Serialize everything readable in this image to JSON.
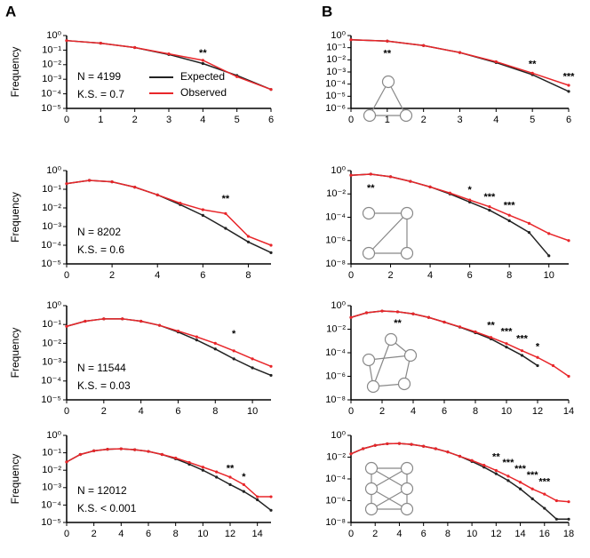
{
  "panel_labels": [
    "A",
    "B"
  ],
  "chart_data": [
    {
      "type": "line",
      "ylabel": "Frequency",
      "log_y": true,
      "x": [
        0,
        1,
        2,
        3,
        4,
        5,
        6
      ],
      "xlim": [
        0,
        6
      ],
      "xticks": [
        0,
        1,
        2,
        3,
        4,
        5,
        6
      ],
      "ylim": [
        1e-05,
        1
      ],
      "yticks": [
        {
          "value": 1,
          "label": "10⁰"
        },
        {
          "value": 0.1,
          "label": "10⁻¹"
        },
        {
          "value": 0.01,
          "label": "10⁻²"
        },
        {
          "value": 0.001,
          "label": "10⁻³"
        },
        {
          "value": 0.0001,
          "label": "10⁻⁴"
        },
        {
          "value": 1e-05,
          "label": "10⁻⁵"
        }
      ],
      "series": [
        {
          "name": "Expected",
          "color": "#222222",
          "values": [
            0.45,
            0.3,
            0.15,
            0.05,
            0.012,
            0.0018,
            0.0002
          ]
        },
        {
          "name": "Observed",
          "color": "#e8262a",
          "values": [
            0.45,
            0.3,
            0.15,
            0.055,
            0.02,
            0.0015,
            0.0002
          ]
        }
      ],
      "legend": "center",
      "texts": [
        "N = 4199",
        "K.S. = 0.7"
      ],
      "annotations": [
        {
          "text": "**",
          "x": 4,
          "y": 0.06
        }
      ]
    },
    {
      "type": "line",
      "ylabel": "Frequency",
      "log_y": true,
      "x": [
        0,
        1,
        2,
        3,
        4,
        5,
        6,
        7,
        8,
        9
      ],
      "xlim": [
        0,
        9
      ],
      "xticks": [
        0,
        2,
        4,
        6,
        8
      ],
      "ylim": [
        1e-05,
        1
      ],
      "yticks": [
        {
          "value": 1,
          "label": "10⁰"
        },
        {
          "value": 0.1,
          "label": "10⁻¹"
        },
        {
          "value": 0.01,
          "label": "10⁻²"
        },
        {
          "value": 0.001,
          "label": "10⁻³"
        },
        {
          "value": 0.0001,
          "label": "10⁻⁴"
        },
        {
          "value": 1e-05,
          "label": "10⁻⁵"
        }
      ],
      "series": [
        {
          "color": "#222222",
          "values": [
            0.2,
            0.3,
            0.25,
            0.13,
            0.05,
            0.015,
            0.004,
            0.0008,
            0.00015,
            4e-05
          ]
        },
        {
          "color": "#e8262a",
          "values": [
            0.2,
            0.3,
            0.25,
            0.13,
            0.05,
            0.018,
            0.008,
            0.005,
            0.0003,
            0.0001
          ]
        }
      ],
      "texts": [
        "N = 8202",
        "K.S. = 0.6"
      ],
      "annotations": [
        {
          "text": "**",
          "x": 7,
          "y": 0.03
        }
      ]
    },
    {
      "type": "line",
      "ylabel": "Frequency",
      "log_y": true,
      "x": [
        0,
        1,
        2,
        3,
        4,
        5,
        6,
        7,
        8,
        9,
        10,
        11
      ],
      "xlim": [
        0,
        11
      ],
      "xticks": [
        0,
        2,
        4,
        6,
        8,
        10
      ],
      "ylim": [
        1e-05,
        1
      ],
      "yticks": [
        {
          "value": 1,
          "label": "10⁰"
        },
        {
          "value": 0.1,
          "label": "10⁻¹"
        },
        {
          "value": 0.01,
          "label": "10⁻²"
        },
        {
          "value": 0.001,
          "label": "10⁻³"
        },
        {
          "value": 0.0001,
          "label": "10⁻⁴"
        },
        {
          "value": 1e-05,
          "label": "10⁻⁵"
        }
      ],
      "series": [
        {
          "color": "#222222",
          "values": [
            0.08,
            0.15,
            0.2,
            0.2,
            0.15,
            0.09,
            0.04,
            0.015,
            0.005,
            0.0015,
            0.0005,
            0.0002
          ]
        },
        {
          "color": "#e8262a",
          "values": [
            0.08,
            0.15,
            0.2,
            0.2,
            0.15,
            0.09,
            0.045,
            0.022,
            0.01,
            0.004,
            0.0015,
            0.0006
          ]
        }
      ],
      "texts": [
        "N = 11544",
        "K.S. = 0.03"
      ],
      "annotations": [
        {
          "text": "*",
          "x": 9,
          "y": 0.03
        }
      ]
    },
    {
      "type": "line",
      "ylabel": "Frequency",
      "log_y": true,
      "x": [
        0,
        1,
        2,
        3,
        4,
        5,
        6,
        7,
        8,
        9,
        10,
        11,
        12,
        13,
        14,
        15
      ],
      "xlim": [
        0,
        15
      ],
      "xticks": [
        0,
        2,
        4,
        6,
        8,
        10,
        12,
        14
      ],
      "ylim": [
        1e-05,
        1
      ],
      "yticks": [
        {
          "value": 1,
          "label": "10⁰"
        },
        {
          "value": 0.1,
          "label": "10⁻¹"
        },
        {
          "value": 0.01,
          "label": "10⁻²"
        },
        {
          "value": 0.001,
          "label": "10⁻³"
        },
        {
          "value": 0.0001,
          "label": "10⁻⁴"
        },
        {
          "value": 1e-05,
          "label": "10⁻⁵"
        }
      ],
      "series": [
        {
          "color": "#222222",
          "values": [
            0.03,
            0.08,
            0.13,
            0.16,
            0.17,
            0.15,
            0.12,
            0.08,
            0.045,
            0.022,
            0.01,
            0.004,
            0.0015,
            0.0006,
            0.0002,
            5e-05
          ]
        },
        {
          "color": "#e8262a",
          "values": [
            0.03,
            0.08,
            0.13,
            0.16,
            0.17,
            0.15,
            0.12,
            0.08,
            0.05,
            0.028,
            0.015,
            0.008,
            0.004,
            0.0015,
            0.0003,
            0.0003
          ]
        }
      ],
      "texts": [
        "N = 12012",
        "K.S. < 0.001"
      ],
      "annotations": [
        {
          "text": "**",
          "x": 12,
          "y": 0.012
        },
        {
          "text": "*",
          "x": 13,
          "y": 0.004
        }
      ]
    },
    {
      "type": "line",
      "log_y": true,
      "x": [
        0,
        1,
        2,
        3,
        4,
        5,
        6
      ],
      "xlim": [
        0,
        6
      ],
      "xticks": [
        0,
        1,
        2,
        3,
        4,
        5,
        6
      ],
      "ylim": [
        1e-06,
        1
      ],
      "yticks": [
        {
          "value": 1,
          "label": "10⁰"
        },
        {
          "value": 0.1,
          "label": "10⁻¹"
        },
        {
          "value": 0.01,
          "label": "10⁻²"
        },
        {
          "value": 0.001,
          "label": "10⁻³"
        },
        {
          "value": 0.0001,
          "label": "10⁻⁴"
        },
        {
          "value": 1e-05,
          "label": "10⁻⁵"
        },
        {
          "value": 1e-06,
          "label": "10⁻⁶"
        }
      ],
      "series": [
        {
          "color": "#222222",
          "values": [
            0.45,
            0.35,
            0.15,
            0.04,
            0.006,
            0.0006,
            2.5e-05
          ]
        },
        {
          "color": "#e8262a",
          "values": [
            0.45,
            0.35,
            0.15,
            0.04,
            0.007,
            0.0008,
            8e-05
          ]
        }
      ],
      "annotations": [
        {
          "text": "**",
          "x": 1,
          "y": 0.03
        },
        {
          "text": "**",
          "x": 5,
          "y": 0.004
        },
        {
          "text": "***",
          "x": 6,
          "y": 0.0004
        }
      ]
    },
    {
      "type": "line",
      "log_y": true,
      "x": [
        0,
        1,
        2,
        3,
        4,
        5,
        6,
        7,
        8,
        9,
        10,
        11
      ],
      "xlim": [
        0,
        11
      ],
      "xticks": [
        0,
        2,
        4,
        6,
        8,
        10
      ],
      "ylim": [
        1e-08,
        1
      ],
      "yticks": [
        {
          "value": 1,
          "label": "10⁰"
        },
        {
          "value": 0.01,
          "label": "10⁻²"
        },
        {
          "value": 0.0001,
          "label": "10⁻⁴"
        },
        {
          "value": 1e-06,
          "label": "10⁻⁶"
        },
        {
          "value": 1e-08,
          "label": "10⁻⁸"
        }
      ],
      "series": [
        {
          "color": "#222222",
          "values": [
            0.4,
            0.5,
            0.3,
            0.12,
            0.04,
            0.01,
            0.002,
            0.0004,
            5e-05,
            5e-06,
            5e-08,
            null
          ]
        },
        {
          "color": "#e8262a",
          "values": [
            0.4,
            0.5,
            0.3,
            0.12,
            0.04,
            0.012,
            0.003,
            0.0008,
            0.00015,
            3e-05,
            4e-06,
            1e-06
          ]
        }
      ],
      "annotations": [
        {
          "text": "**",
          "x": 1,
          "y": 0.03
        },
        {
          "text": "*",
          "x": 6,
          "y": 0.02
        },
        {
          "text": "***",
          "x": 7,
          "y": 0.005
        },
        {
          "text": "***",
          "x": 8,
          "y": 0.001
        }
      ]
    },
    {
      "type": "line",
      "log_y": true,
      "x": [
        0,
        1,
        2,
        3,
        4,
        5,
        6,
        7,
        8,
        9,
        10,
        11,
        12,
        13,
        14
      ],
      "xlim": [
        0,
        14
      ],
      "xticks": [
        0,
        2,
        4,
        6,
        8,
        10,
        12,
        14
      ],
      "ylim": [
        1e-08,
        1
      ],
      "yticks": [
        {
          "value": 1,
          "label": "10⁰"
        },
        {
          "value": 0.01,
          "label": "10⁻²"
        },
        {
          "value": 0.0001,
          "label": "10⁻⁴"
        },
        {
          "value": 1e-06,
          "label": "10⁻⁶"
        },
        {
          "value": 1e-08,
          "label": "10⁻⁸"
        }
      ],
      "series": [
        {
          "color": "#222222",
          "values": [
            0.1,
            0.25,
            0.35,
            0.3,
            0.2,
            0.1,
            0.04,
            0.015,
            0.005,
            0.0015,
            0.0003,
            6e-05,
            8e-06,
            null,
            null
          ]
        },
        {
          "color": "#e8262a",
          "values": [
            0.1,
            0.25,
            0.35,
            0.3,
            0.2,
            0.1,
            0.04,
            0.016,
            0.006,
            0.002,
            0.0006,
            0.00015,
            4e-05,
            8e-06,
            1e-06
          ]
        }
      ],
      "annotations": [
        {
          "text": "**",
          "x": 3,
          "y": 0.03
        },
        {
          "text": "**",
          "x": 9,
          "y": 0.02
        },
        {
          "text": "***",
          "x": 10,
          "y": 0.006
        },
        {
          "text": "***",
          "x": 11,
          "y": 0.0015
        },
        {
          "text": "*",
          "x": 12,
          "y": 0.0003
        }
      ]
    },
    {
      "type": "line",
      "log_y": true,
      "x": [
        0,
        1,
        2,
        3,
        4,
        5,
        6,
        7,
        8,
        9,
        10,
        11,
        12,
        13,
        14,
        15,
        16,
        17,
        18
      ],
      "xlim": [
        0,
        18
      ],
      "xticks": [
        0,
        2,
        4,
        6,
        8,
        10,
        12,
        14,
        16,
        18
      ],
      "ylim": [
        1e-08,
        1
      ],
      "yticks": [
        {
          "value": 1,
          "label": "10⁰"
        },
        {
          "value": 0.01,
          "label": "10⁻²"
        },
        {
          "value": 0.0001,
          "label": "10⁻⁴"
        },
        {
          "value": 1e-06,
          "label": "10⁻⁶"
        },
        {
          "value": 1e-08,
          "label": "10⁻⁸"
        }
      ],
      "series": [
        {
          "color": "#222222",
          "values": [
            0.02,
            0.06,
            0.12,
            0.17,
            0.18,
            0.15,
            0.1,
            0.06,
            0.03,
            0.012,
            0.004,
            0.0012,
            0.0003,
            7e-05,
            1.2e-05,
            1.5e-06,
            2e-07,
            2e-08,
            2e-08
          ]
        },
        {
          "color": "#e8262a",
          "values": [
            0.02,
            0.06,
            0.12,
            0.17,
            0.18,
            0.15,
            0.1,
            0.06,
            0.03,
            0.012,
            0.005,
            0.0018,
            0.0006,
            0.00018,
            5e-05,
            1.2e-05,
            4e-06,
            1e-06,
            8e-07
          ]
        }
      ],
      "annotations": [
        {
          "text": "**",
          "x": 12,
          "y": 0.01
        },
        {
          "text": "***",
          "x": 13,
          "y": 0.003
        },
        {
          "text": "***",
          "x": 14,
          "y": 0.0008
        },
        {
          "text": "***",
          "x": 15,
          "y": 0.0002
        },
        {
          "text": "***",
          "x": 16,
          "y": 5e-05
        }
      ]
    }
  ]
}
